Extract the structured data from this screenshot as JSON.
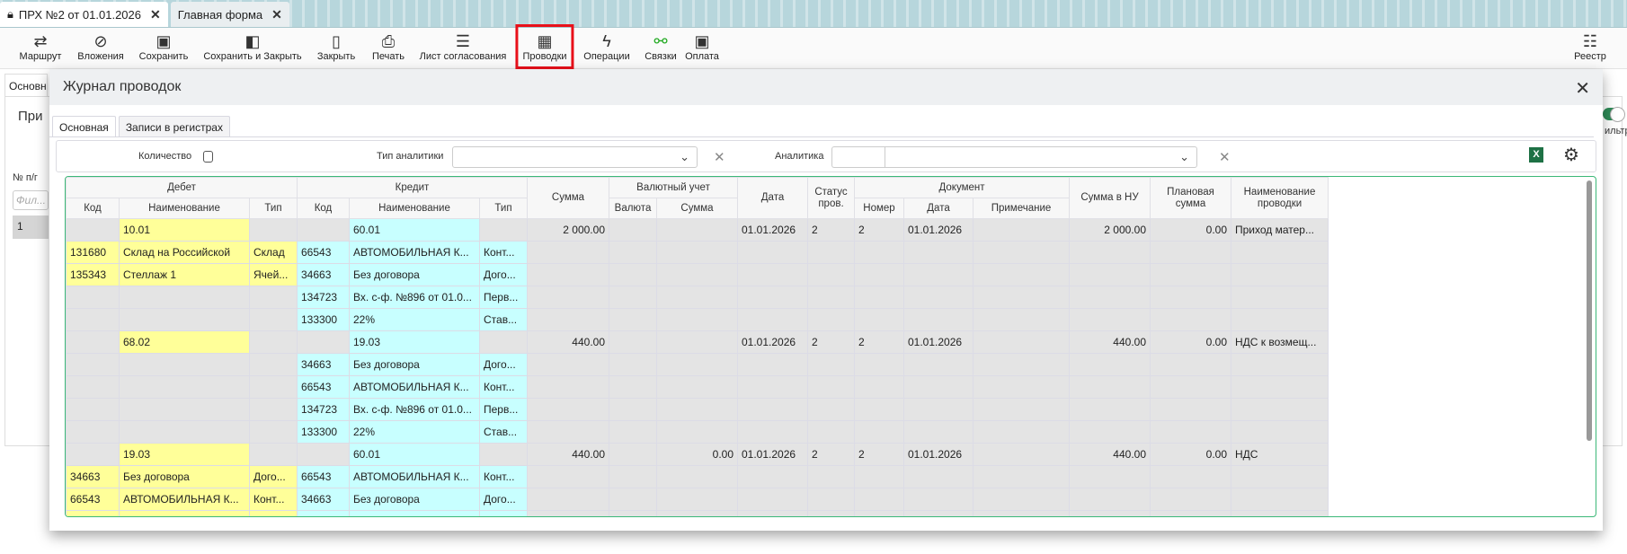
{
  "tabs": [
    {
      "label": "ПРХ №2 от 01.01.2026",
      "icon": "lock-icon",
      "active": true
    },
    {
      "label": "Главная форма",
      "active": false
    }
  ],
  "toolbar": {
    "items": [
      {
        "label": "Маршрут",
        "icon": "route-icon"
      },
      {
        "label": "Вложения",
        "icon": "paperclip-icon"
      },
      {
        "label": "Сохранить",
        "icon": "save-icon"
      },
      {
        "label": "Сохранить и Закрыть",
        "icon": "save-close-icon"
      },
      {
        "label": "Закрыть",
        "icon": "door-icon"
      },
      {
        "label": "Печать",
        "icon": "printer-icon"
      },
      {
        "label": "Лист согласования",
        "icon": "checklist-icon"
      },
      {
        "label": "Проводки",
        "icon": "calculator-icon",
        "highlighted": true
      },
      {
        "label": "Операции",
        "icon": "lightning-icon"
      },
      {
        "label": "Связки",
        "icon": "link-check-icon"
      },
      {
        "label": "Оплата",
        "icon": "money-icon"
      },
      {
        "label": "Реестр",
        "icon": "registry-icon"
      }
    ]
  },
  "background": {
    "tab": "Основн",
    "panel_title": "При",
    "col_header": "№ п/г",
    "filter_placeholder": "Фил...",
    "row_number": "1",
    "toggle_label": "ильтр"
  },
  "modal": {
    "title": "Журнал проводок",
    "tabs": [
      {
        "label": "Основная",
        "active": true
      },
      {
        "label": "Записи в регистрах",
        "active": false
      }
    ],
    "filter": {
      "quantity_label": "Количество",
      "quantity_checked": false,
      "analytics_type_label": "Тип аналитики",
      "analytics_type_value": "",
      "analytics_label": "Аналитика",
      "analytics_value": "",
      "excel_label": "X"
    },
    "groups": {
      "debit": "Дебет",
      "credit": "Кредит",
      "currency": "Валютный учет",
      "document": "Документ"
    },
    "columns": {
      "code": "Код",
      "name": "Наименование",
      "type": "Тип",
      "sum": "Сумма",
      "currency": "Валюта",
      "cur_sum": "Сумма",
      "date": "Дата",
      "status": "Статус пров.",
      "doc_number": "Номер",
      "doc_date": "Дата",
      "note": "Примечание",
      "sum_nu": "Сумма в НУ",
      "plan_sum": "Плановая сумма",
      "entry_name": "Наименование проводки"
    },
    "rows": [
      {
        "kind": "main",
        "d": [
          "",
          "10.01",
          ""
        ],
        "c": [
          "",
          "60.01",
          ""
        ],
        "v": [
          "2 000.00",
          "",
          "",
          "01.01.2026",
          "2",
          "2",
          "01.01.2026",
          "",
          "2 000.00",
          "0.00",
          "Приход матер..."
        ]
      },
      {
        "kind": "analytic",
        "d": [
          "131680",
          "Склад на Российской",
          "Склад"
        ],
        "c": [
          "66543",
          "АВТОМОБИЛЬНАЯ К...",
          "Конт..."
        ]
      },
      {
        "kind": "analytic",
        "d": [
          "135343",
          "Стеллаж 1",
          "Ячей..."
        ],
        "c": [
          "34663",
          "Без договора",
          "Дого..."
        ]
      },
      {
        "kind": "analytic",
        "d": [
          "",
          "",
          ""
        ],
        "c": [
          "134723",
          "Вх. с-ф. №896 от 01.0...",
          "Перв..."
        ]
      },
      {
        "kind": "analytic",
        "d": [
          "",
          "",
          ""
        ],
        "c": [
          "133300",
          "22%",
          "Став..."
        ]
      },
      {
        "kind": "main",
        "d": [
          "",
          "68.02",
          ""
        ],
        "c": [
          "",
          "19.03",
          ""
        ],
        "v": [
          "440.00",
          "",
          "",
          "01.01.2026",
          "2",
          "2",
          "01.01.2026",
          "",
          "440.00",
          "0.00",
          "НДС к возмещ..."
        ]
      },
      {
        "kind": "analytic",
        "d": [
          "",
          "",
          ""
        ],
        "c": [
          "34663",
          "Без договора",
          "Дого..."
        ]
      },
      {
        "kind": "analytic",
        "d": [
          "",
          "",
          ""
        ],
        "c": [
          "66543",
          "АВТОМОБИЛЬНАЯ К...",
          "Конт..."
        ]
      },
      {
        "kind": "analytic",
        "d": [
          "",
          "",
          ""
        ],
        "c": [
          "134723",
          "Вх. с-ф. №896 от 01.0...",
          "Перв..."
        ]
      },
      {
        "kind": "analytic",
        "d": [
          "",
          "",
          ""
        ],
        "c": [
          "133300",
          "22%",
          "Став..."
        ]
      },
      {
        "kind": "main",
        "d": [
          "",
          "19.03",
          ""
        ],
        "c": [
          "",
          "60.01",
          ""
        ],
        "v": [
          "440.00",
          "",
          "0.00",
          "01.01.2026",
          "2",
          "2",
          "01.01.2026",
          "",
          "440.00",
          "0.00",
          "НДС"
        ]
      },
      {
        "kind": "analytic",
        "d": [
          "34663",
          "Без договора",
          "Дого..."
        ],
        "c": [
          "66543",
          "АВТОМОБИЛЬНАЯ К...",
          "Конт..."
        ]
      },
      {
        "kind": "analytic",
        "d": [
          "66543",
          "АВТОМОБИЛЬНАЯ К...",
          "Конт..."
        ],
        "c": [
          "34663",
          "Без договора",
          "Дого..."
        ]
      }
    ]
  },
  "colors": {
    "debit_fill": "#ffff99",
    "credit_fill": "#c8ffff",
    "grid_border": "#3cb878",
    "highlight": "#e8101a",
    "excel": "#1e7145"
  }
}
